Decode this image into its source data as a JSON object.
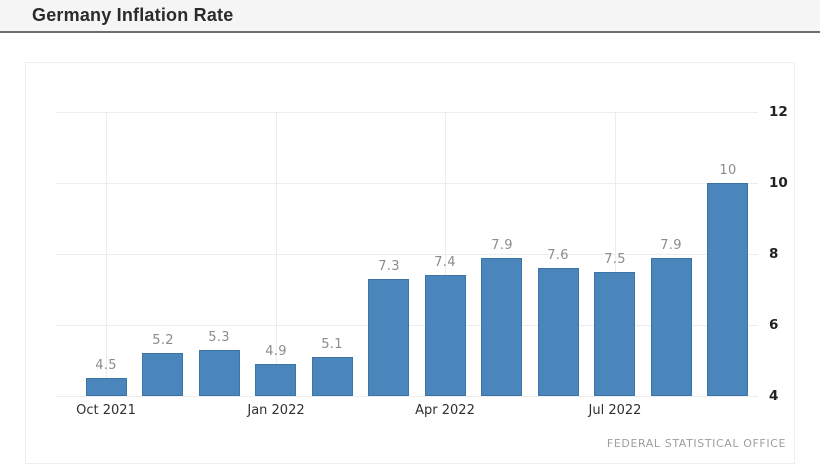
{
  "header": {
    "title": "Germany Inflation Rate"
  },
  "chart_data": {
    "type": "bar",
    "title": "Germany Inflation Rate",
    "values": [
      4.5,
      5.2,
      5.3,
      4.9,
      5.1,
      7.3,
      7.4,
      7.9,
      7.6,
      7.5,
      7.9,
      10
    ],
    "bar_labels": [
      "4.5",
      "5.2",
      "5.3",
      "4.9",
      "5.1",
      "7.3",
      "7.4",
      "7.9",
      "7.6",
      "7.5",
      "7.9",
      "10"
    ],
    "x_ticks": [
      {
        "bar_index": 0,
        "label": "Oct 2021"
      },
      {
        "bar_index": 3,
        "label": "Jan 2022"
      },
      {
        "bar_index": 6,
        "label": "Apr 2022"
      },
      {
        "bar_index": 9,
        "label": "Jul 2022"
      }
    ],
    "y_ticks": [
      4,
      6,
      8,
      10,
      12
    ],
    "ylim": [
      4,
      12.6
    ],
    "grid": "horizontal lines at y ticks, vertical lines at labeled months",
    "legend": "none",
    "bar_color": "#4a86bc",
    "bar_border_color": "#3d74a6",
    "value_label_color": "#8c8c8c",
    "axis_tick_color": "#222222",
    "source": "FEDERAL STATISTICAL OFFICE"
  },
  "footer": {
    "source": "FEDERAL STATISTICAL OFFICE"
  }
}
